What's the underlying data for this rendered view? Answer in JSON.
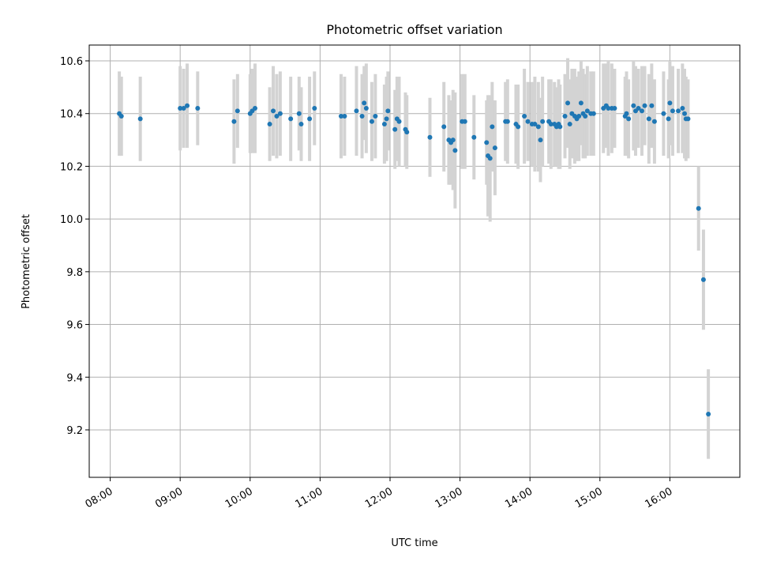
{
  "chart_data": {
    "type": "scatter",
    "title": "Photometric offset variation",
    "xlabel": "UTC time",
    "ylabel": "Photometric offset",
    "x_unit": "UTC hour of day",
    "xlim": [
      7.7,
      17.0
    ],
    "ylim": [
      9.02,
      10.66
    ],
    "x_ticks": [
      {
        "value": 8,
        "label": "08:00"
      },
      {
        "value": 9,
        "label": "09:00"
      },
      {
        "value": 10,
        "label": "10:00"
      },
      {
        "value": 11,
        "label": "11:00"
      },
      {
        "value": 12,
        "label": "12:00"
      },
      {
        "value": 13,
        "label": "13:00"
      },
      {
        "value": 14,
        "label": "14:00"
      },
      {
        "value": 15,
        "label": "15:00"
      },
      {
        "value": 16,
        "label": "16:00"
      }
    ],
    "y_ticks": [
      {
        "value": 9.2,
        "label": "9.2"
      },
      {
        "value": 9.4,
        "label": "9.4"
      },
      {
        "value": 9.6,
        "label": "9.6"
      },
      {
        "value": 9.8,
        "label": "9.8"
      },
      {
        "value": 10.0,
        "label": "10.0"
      },
      {
        "value": 10.2,
        "label": "10.2"
      },
      {
        "value": 10.4,
        "label": "10.4"
      },
      {
        "value": 10.6,
        "label": "10.6"
      }
    ],
    "grid": true,
    "marker_color": "#1f77b4",
    "errorbar_color": "#d3d3d3",
    "series": [
      {
        "points": [
          {
            "x": 8.13,
            "y": 10.4,
            "err": 0.16
          },
          {
            "x": 8.16,
            "y": 10.39,
            "err": 0.15
          },
          {
            "x": 8.43,
            "y": 10.38,
            "err": 0.16
          },
          {
            "x": 9.0,
            "y": 10.42,
            "err": 0.16
          },
          {
            "x": 9.05,
            "y": 10.42,
            "err": 0.15
          },
          {
            "x": 9.1,
            "y": 10.43,
            "err": 0.16
          },
          {
            "x": 9.25,
            "y": 10.42,
            "err": 0.14
          },
          {
            "x": 9.77,
            "y": 10.37,
            "err": 0.16
          },
          {
            "x": 9.82,
            "y": 10.41,
            "err": 0.14
          },
          {
            "x": 10.0,
            "y": 10.4,
            "err": 0.15
          },
          {
            "x": 10.03,
            "y": 10.41,
            "err": 0.16
          },
          {
            "x": 10.07,
            "y": 10.42,
            "err": 0.17
          },
          {
            "x": 10.28,
            "y": 10.36,
            "err": 0.14
          },
          {
            "x": 10.33,
            "y": 10.41,
            "err": 0.17
          },
          {
            "x": 10.38,
            "y": 10.39,
            "err": 0.16
          },
          {
            "x": 10.43,
            "y": 10.4,
            "err": 0.16
          },
          {
            "x": 10.58,
            "y": 10.38,
            "err": 0.16
          },
          {
            "x": 10.7,
            "y": 10.4,
            "err": 0.14
          },
          {
            "x": 10.73,
            "y": 10.36,
            "err": 0.14
          },
          {
            "x": 10.85,
            "y": 10.38,
            "err": 0.16
          },
          {
            "x": 10.92,
            "y": 10.42,
            "err": 0.14
          },
          {
            "x": 11.3,
            "y": 10.39,
            "err": 0.16
          },
          {
            "x": 11.35,
            "y": 10.39,
            "err": 0.15
          },
          {
            "x": 11.52,
            "y": 10.41,
            "err": 0.17
          },
          {
            "x": 11.6,
            "y": 10.39,
            "err": 0.16
          },
          {
            "x": 11.63,
            "y": 10.44,
            "err": 0.14
          },
          {
            "x": 11.66,
            "y": 10.42,
            "err": 0.17
          },
          {
            "x": 11.74,
            "y": 10.37,
            "err": 0.15
          },
          {
            "x": 11.79,
            "y": 10.39,
            "err": 0.16
          },
          {
            "x": 11.92,
            "y": 10.36,
            "err": 0.15
          },
          {
            "x": 11.95,
            "y": 10.38,
            "err": 0.16
          },
          {
            "x": 11.97,
            "y": 10.41,
            "err": 0.15
          },
          {
            "x": 12.07,
            "y": 10.34,
            "err": 0.15
          },
          {
            "x": 12.1,
            "y": 10.38,
            "err": 0.16
          },
          {
            "x": 12.13,
            "y": 10.37,
            "err": 0.17
          },
          {
            "x": 12.22,
            "y": 10.34,
            "err": 0.14
          },
          {
            "x": 12.24,
            "y": 10.33,
            "err": 0.14
          },
          {
            "x": 12.57,
            "y": 10.31,
            "err": 0.15
          },
          {
            "x": 12.77,
            "y": 10.35,
            "err": 0.17
          },
          {
            "x": 12.84,
            "y": 10.3,
            "err": 0.17
          },
          {
            "x": 12.87,
            "y": 10.29,
            "err": 0.16
          },
          {
            "x": 12.9,
            "y": 10.3,
            "err": 0.19
          },
          {
            "x": 12.93,
            "y": 10.26,
            "err": 0.22
          },
          {
            "x": 13.03,
            "y": 10.37,
            "err": 0.18
          },
          {
            "x": 13.07,
            "y": 10.37,
            "err": 0.18
          },
          {
            "x": 13.2,
            "y": 10.31,
            "err": 0.16
          },
          {
            "x": 13.38,
            "y": 10.29,
            "err": 0.16
          },
          {
            "x": 13.4,
            "y": 10.24,
            "err": 0.23
          },
          {
            "x": 13.43,
            "y": 10.23,
            "err": 0.24
          },
          {
            "x": 13.46,
            "y": 10.35,
            "err": 0.17
          },
          {
            "x": 13.5,
            "y": 10.27,
            "err": 0.18
          },
          {
            "x": 13.65,
            "y": 10.37,
            "err": 0.15
          },
          {
            "x": 13.68,
            "y": 10.37,
            "err": 0.16
          },
          {
            "x": 13.8,
            "y": 10.36,
            "err": 0.15
          },
          {
            "x": 13.83,
            "y": 10.35,
            "err": 0.16
          },
          {
            "x": 13.92,
            "y": 10.39,
            "err": 0.18
          },
          {
            "x": 13.97,
            "y": 10.37,
            "err": 0.15
          },
          {
            "x": 14.03,
            "y": 10.36,
            "err": 0.16
          },
          {
            "x": 14.07,
            "y": 10.36,
            "err": 0.18
          },
          {
            "x": 14.12,
            "y": 10.35,
            "err": 0.17
          },
          {
            "x": 14.15,
            "y": 10.3,
            "err": 0.16
          },
          {
            "x": 14.18,
            "y": 10.37,
            "err": 0.17
          },
          {
            "x": 14.27,
            "y": 10.37,
            "err": 0.16
          },
          {
            "x": 14.3,
            "y": 10.36,
            "err": 0.17
          },
          {
            "x": 14.35,
            "y": 10.36,
            "err": 0.16
          },
          {
            "x": 14.38,
            "y": 10.35,
            "err": 0.15
          },
          {
            "x": 14.41,
            "y": 10.36,
            "err": 0.17
          },
          {
            "x": 14.43,
            "y": 10.35,
            "err": 0.16
          },
          {
            "x": 14.5,
            "y": 10.39,
            "err": 0.16
          },
          {
            "x": 14.54,
            "y": 10.44,
            "err": 0.17
          },
          {
            "x": 14.57,
            "y": 10.36,
            "err": 0.17
          },
          {
            "x": 14.6,
            "y": 10.4,
            "err": 0.17
          },
          {
            "x": 14.64,
            "y": 10.39,
            "err": 0.18
          },
          {
            "x": 14.67,
            "y": 10.38,
            "err": 0.16
          },
          {
            "x": 14.7,
            "y": 10.39,
            "err": 0.17
          },
          {
            "x": 14.73,
            "y": 10.44,
            "err": 0.16
          },
          {
            "x": 14.76,
            "y": 10.4,
            "err": 0.17
          },
          {
            "x": 14.79,
            "y": 10.39,
            "err": 0.16
          },
          {
            "x": 14.82,
            "y": 10.41,
            "err": 0.17
          },
          {
            "x": 14.87,
            "y": 10.4,
            "err": 0.16
          },
          {
            "x": 14.91,
            "y": 10.4,
            "err": 0.16
          },
          {
            "x": 15.05,
            "y": 10.42,
            "err": 0.17
          },
          {
            "x": 15.09,
            "y": 10.43,
            "err": 0.16
          },
          {
            "x": 15.12,
            "y": 10.42,
            "err": 0.18
          },
          {
            "x": 15.17,
            "y": 10.42,
            "err": 0.17
          },
          {
            "x": 15.21,
            "y": 10.42,
            "err": 0.15
          },
          {
            "x": 15.36,
            "y": 10.39,
            "err": 0.15
          },
          {
            "x": 15.38,
            "y": 10.4,
            "err": 0.16
          },
          {
            "x": 15.41,
            "y": 10.38,
            "err": 0.15
          },
          {
            "x": 15.48,
            "y": 10.43,
            "err": 0.17
          },
          {
            "x": 15.51,
            "y": 10.41,
            "err": 0.17
          },
          {
            "x": 15.55,
            "y": 10.42,
            "err": 0.15
          },
          {
            "x": 15.6,
            "y": 10.41,
            "err": 0.17
          },
          {
            "x": 15.64,
            "y": 10.43,
            "err": 0.15
          },
          {
            "x": 15.7,
            "y": 10.38,
            "err": 0.17
          },
          {
            "x": 15.74,
            "y": 10.43,
            "err": 0.16
          },
          {
            "x": 15.78,
            "y": 10.37,
            "err": 0.16
          },
          {
            "x": 15.91,
            "y": 10.4,
            "err": 0.16
          },
          {
            "x": 15.98,
            "y": 10.38,
            "err": 0.15
          },
          {
            "x": 16.0,
            "y": 10.44,
            "err": 0.16
          },
          {
            "x": 16.04,
            "y": 10.41,
            "err": 0.17
          },
          {
            "x": 16.12,
            "y": 10.41,
            "err": 0.16
          },
          {
            "x": 16.18,
            "y": 10.42,
            "err": 0.17
          },
          {
            "x": 16.21,
            "y": 10.4,
            "err": 0.17
          },
          {
            "x": 16.23,
            "y": 10.38,
            "err": 0.16
          },
          {
            "x": 16.26,
            "y": 10.38,
            "err": 0.15
          },
          {
            "x": 16.41,
            "y": 10.04,
            "err": 0.16
          },
          {
            "x": 16.48,
            "y": 9.77,
            "err": 0.19
          },
          {
            "x": 16.55,
            "y": 9.26,
            "err": 0.17
          }
        ]
      }
    ]
  }
}
